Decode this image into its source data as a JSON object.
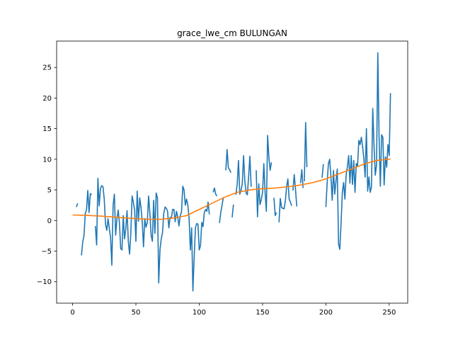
{
  "chart_data": {
    "type": "line",
    "title": "grace_lwe_cm BULUNGAN",
    "xlabel": "",
    "ylabel": "",
    "xlim": [
      -12.6,
      264.6
    ],
    "ylim": [
      -13.5,
      29.3
    ],
    "xticks": [
      0,
      50,
      100,
      150,
      200,
      250
    ],
    "yticks": [
      -10,
      -5,
      0,
      5,
      10,
      15,
      20,
      25
    ],
    "grid": false,
    "legend": "none",
    "series": [
      {
        "color": "#1f77b4",
        "segments": [
          [
            [
              3,
              2.2
            ],
            [
              4,
              2.8
            ]
          ],
          [
            [
              7,
              -5.7
            ],
            [
              8,
              -3.5
            ],
            [
              9,
              -2.5
            ],
            [
              10,
              1.1
            ],
            [
              11,
              1.8
            ],
            [
              12,
              4.9
            ],
            [
              13,
              1.3
            ],
            [
              14,
              4.4
            ],
            [
              15,
              4.2
            ]
          ],
          [
            [
              18,
              -0.9
            ],
            [
              19,
              -4.0
            ],
            [
              20,
              6.9
            ],
            [
              21,
              2.4
            ],
            [
              22,
              5.2
            ],
            [
              23,
              5.7
            ],
            [
              24,
              5.5
            ],
            [
              25,
              3.5
            ],
            [
              26,
              -0.6
            ],
            [
              27,
              -1.6
            ],
            [
              28,
              0.3
            ],
            [
              29,
              -1.3
            ],
            [
              30,
              -2.8
            ],
            [
              31,
              -7.3
            ],
            [
              32,
              2.5
            ],
            [
              33,
              4.3
            ],
            [
              34,
              -2.4
            ],
            [
              35,
              0.2
            ],
            [
              36,
              1.7
            ],
            [
              37,
              -0.4
            ],
            [
              38,
              -4.6
            ],
            [
              39,
              -4.8
            ],
            [
              40,
              0.8
            ],
            [
              41,
              -3.0
            ],
            [
              42,
              -1.4
            ],
            [
              43,
              1.6
            ],
            [
              44,
              -3.4
            ],
            [
              45,
              -5.5
            ],
            [
              46,
              -2.0
            ],
            [
              47,
              4.0
            ],
            [
              48,
              3.0
            ],
            [
              49,
              1.6
            ],
            [
              50,
              -3.4
            ],
            [
              51,
              4.8
            ],
            [
              52,
              -0.1
            ],
            [
              53,
              3.7
            ],
            [
              54,
              2.2
            ],
            [
              55,
              -0.2
            ],
            [
              56,
              -4.3
            ],
            [
              57,
              0.3
            ],
            [
              58,
              -1.1
            ],
            [
              59,
              -0.3
            ],
            [
              60,
              4.0
            ],
            [
              61,
              1.3
            ],
            [
              62,
              -2.4
            ],
            [
              63,
              -3.4
            ],
            [
              64,
              3.3
            ],
            [
              65,
              -2.1
            ],
            [
              66,
              4.5
            ],
            [
              67,
              3.7
            ],
            [
              68,
              -10.2
            ],
            [
              69,
              -4.8
            ],
            [
              70,
              -3.0
            ],
            [
              71,
              -2.0
            ]
          ]
        ]
      },
      {
        "color": "#1f77b4",
        "segments": [
          [
            [
              71,
              -2.0
            ],
            [
              72,
              1.2
            ],
            [
              73,
              2.2
            ],
            [
              74,
              2.0
            ],
            [
              75,
              1.5
            ],
            [
              76,
              -1.2
            ],
            [
              77,
              0.5
            ],
            [
              78,
              0.4
            ],
            [
              79,
              1.8
            ],
            [
              80,
              1.8
            ],
            [
              81,
              -0.2
            ],
            [
              82,
              1.5
            ],
            [
              83,
              0.6
            ],
            [
              84,
              -0.9
            ],
            [
              85,
              0.8
            ],
            [
              86,
              1.4
            ],
            [
              87,
              5.6
            ],
            [
              88,
              5.0
            ],
            [
              89,
              2.5
            ],
            [
              90,
              3.5
            ],
            [
              91,
              2.5
            ],
            [
              92,
              0.3
            ],
            [
              93,
              -4.8
            ],
            [
              94,
              -1.2
            ],
            [
              95,
              -11.5
            ],
            [
              96,
              -6.0
            ],
            [
              97,
              -1.2
            ],
            [
              98,
              -0.5
            ],
            [
              99,
              -0.6
            ],
            [
              100,
              -4.8
            ],
            [
              101,
              -4.1
            ],
            [
              102,
              -0.3
            ],
            [
              103,
              -1.0
            ],
            [
              104,
              1.3
            ],
            [
              105,
              1.8
            ],
            [
              106,
              1.5
            ],
            [
              107,
              3.0
            ],
            [
              108,
              1.0
            ]
          ],
          [
            [
              111,
              4.6
            ],
            [
              112,
              5.3
            ],
            [
              113,
              4.3
            ],
            [
              114,
              4.0
            ]
          ],
          [
            [
              116,
              -0.4
            ],
            [
              117,
              1.3
            ],
            [
              118,
              2.5
            ],
            [
              119,
              3.7
            ]
          ],
          [
            [
              121,
              8.2
            ],
            [
              122,
              11.6
            ],
            [
              123,
              8.6
            ],
            [
              124,
              8.3
            ],
            [
              125,
              7.8
            ]
          ],
          [
            [
              126,
              0.5
            ],
            [
              127,
              2.6
            ]
          ],
          [
            [
              129,
              4.2
            ],
            [
              130,
              6.0
            ],
            [
              131,
              9.8
            ],
            [
              132,
              4.3
            ],
            [
              133,
              4.9
            ],
            [
              134,
              6.0
            ],
            [
              135,
              10.6
            ],
            [
              136,
              6.5
            ],
            [
              137,
              4.5
            ],
            [
              138,
              4.2
            ],
            [
              139,
              7.2
            ],
            [
              140,
              10.5
            ],
            [
              141,
              5.5
            ]
          ],
          [
            [
              145,
              8.2
            ],
            [
              146,
              0.6
            ],
            [
              147,
              6.0
            ],
            [
              148,
              2.6
            ],
            [
              149,
              3.4
            ],
            [
              150,
              4.6
            ],
            [
              151,
              9.3
            ],
            [
              152,
              4.6
            ],
            [
              153,
              1.5
            ],
            [
              154,
              13.9
            ],
            [
              155,
              10.3
            ],
            [
              156,
              8.2
            ],
            [
              157,
              9.5
            ]
          ],
          [
            [
              159,
              3.7
            ],
            [
              160,
              0.8
            ],
            [
              161,
              1.3
            ]
          ],
          [
            [
              163,
              -0.3
            ],
            [
              164,
              3.6
            ],
            [
              165,
              2.1
            ],
            [
              166,
              2.0
            ],
            [
              167,
              1.9
            ],
            [
              168,
              3.2
            ],
            [
              169,
              5.5
            ],
            [
              170,
              6.8
            ],
            [
              171,
              3.5
            ],
            [
              172,
              3.0
            ],
            [
              173,
              2.4
            ]
          ],
          [
            [
              174,
              4.9
            ],
            [
              175,
              7.5
            ],
            [
              176,
              5.1
            ],
            [
              177,
              2.3
            ]
          ],
          [
            [
              180,
              6.1
            ],
            [
              181,
              8.3
            ],
            [
              182,
              5.3
            ]
          ],
          [
            [
              183,
              6.4
            ],
            [
              184,
              16.0
            ],
            [
              185,
              8.7
            ]
          ]
        ]
      },
      {
        "color": "#1f77b4",
        "segments": [
          [
            [
              197,
              7.0
            ],
            [
              198,
              9.2
            ]
          ],
          [
            [
              200,
              2.2
            ],
            [
              201,
              6.1
            ],
            [
              202,
              9.3
            ],
            [
              203,
              10.0
            ],
            [
              204,
              7.1
            ],
            [
              205,
              3.3
            ],
            [
              206,
              8.2
            ],
            [
              207,
              4.3
            ],
            [
              208,
              6.5
            ],
            [
              209,
              8.4
            ],
            [
              210,
              -3.8
            ],
            [
              211,
              -4.7
            ],
            [
              212,
              -0.4
            ],
            [
              213,
              4.6
            ],
            [
              214,
              6.2
            ],
            [
              215,
              3.5
            ],
            [
              216,
              7.5
            ],
            [
              217,
              8.8
            ],
            [
              218,
              10.6
            ],
            [
              219,
              6.1
            ],
            [
              220,
              10.6
            ],
            [
              221,
              5.9
            ],
            [
              222,
              9.8
            ],
            [
              223,
              4.6
            ],
            [
              224,
              9.3
            ],
            [
              225,
              8.9
            ],
            [
              226,
              13.1
            ],
            [
              227,
              12.4
            ],
            [
              228,
              13.6
            ],
            [
              229,
              12.0
            ],
            [
              230,
              10.1
            ],
            [
              231,
              7.1
            ],
            [
              232,
              15.0
            ],
            [
              233,
              4.8
            ],
            [
              234,
              7.1
            ],
            [
              235,
              4.6
            ],
            [
              236,
              5.5
            ],
            [
              237,
              18.3
            ],
            [
              238,
              12.4
            ],
            [
              239,
              7.4
            ],
            [
              240,
              9.1
            ],
            [
              241,
              27.4
            ],
            [
              242,
              13.6
            ],
            [
              243,
              5.6
            ],
            [
              244,
              14.0
            ],
            [
              245,
              13.6
            ],
            [
              246,
              5.8
            ],
            [
              247,
              10.4
            ],
            [
              248,
              8.7
            ],
            [
              249,
              12.4
            ],
            [
              250,
              10.6
            ],
            [
              251,
              20.8
            ]
          ]
        ]
      },
      {
        "color": "#ff7f0e",
        "segments": [
          [
            [
              0,
              0.9
            ],
            [
              10,
              0.85
            ],
            [
              20,
              0.75
            ],
            [
              30,
              0.6
            ],
            [
              40,
              0.45
            ],
            [
              50,
              0.3
            ],
            [
              60,
              0.2
            ],
            [
              70,
              0.2
            ],
            [
              80,
              0.4
            ],
            [
              90,
              0.8
            ],
            [
              100,
              1.8
            ],
            [
              110,
              2.8
            ],
            [
              120,
              3.8
            ],
            [
              130,
              4.6
            ],
            [
              140,
              5.0
            ],
            [
              150,
              5.2
            ],
            [
              160,
              5.3
            ],
            [
              170,
              5.5
            ],
            [
              180,
              5.8
            ],
            [
              190,
              6.2
            ],
            [
              200,
              6.8
            ],
            [
              210,
              7.6
            ],
            [
              220,
              8.4
            ],
            [
              230,
              9.2
            ],
            [
              240,
              9.8
            ],
            [
              250,
              10.0
            ],
            [
              251,
              10.1
            ]
          ]
        ]
      }
    ]
  }
}
